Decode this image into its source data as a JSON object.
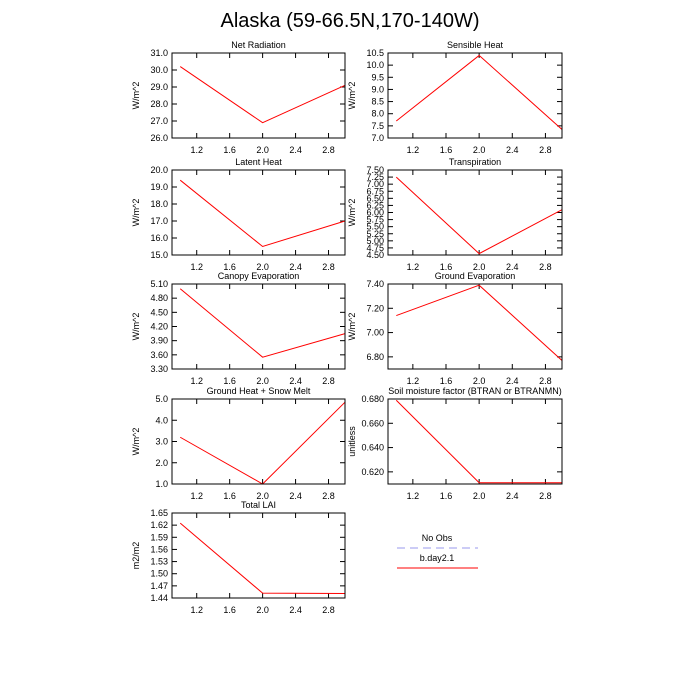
{
  "title": "Alaska (59-66.5N,170-140W)",
  "legend": [
    {
      "name": "No Obs",
      "color": "#9999ee",
      "dashed": true
    },
    {
      "name": "b.day2.1",
      "color": "#ff0000",
      "dashed": false
    }
  ],
  "chart_data": [
    {
      "type": "line",
      "title": "Net Radiation",
      "ylabel": "W/m^2",
      "x": [
        1,
        2,
        3
      ],
      "values": [
        30.2,
        26.9,
        29.1
      ],
      "color": "#ff0000",
      "xlim": [
        0.9,
        3.0
      ],
      "xticks": [
        1.2,
        1.6,
        {
          "value": 2,
          "label": "2.0"
        },
        2.4,
        2.8
      ],
      "ylim": [
        26,
        31
      ],
      "yticks": [
        {
          "value": 26,
          "label": "26.0"
        },
        {
          "value": 27,
          "label": "27.0"
        },
        {
          "value": 28,
          "label": "28.0"
        },
        {
          "value": 29,
          "label": "29.0"
        },
        {
          "value": 30,
          "label": "30.0"
        },
        {
          "value": 31,
          "label": "31.0"
        }
      ]
    },
    {
      "type": "line",
      "title": "Sensible Heat",
      "ylabel": "W/m^2",
      "x": [
        1,
        2,
        3
      ],
      "values": [
        7.7,
        10.4,
        7.35
      ],
      "color": "#ff0000",
      "xlim": [
        0.9,
        3.0
      ],
      "xticks": [
        1.2,
        1.6,
        {
          "value": 2,
          "label": "2.0"
        },
        2.4,
        2.8
      ],
      "ylim": [
        7,
        10.5
      ],
      "yticks": [
        {
          "value": 7,
          "label": "7.0"
        },
        7.5,
        {
          "value": 8,
          "label": "8.0"
        },
        8.5,
        {
          "value": 9,
          "label": "9.0"
        },
        9.5,
        {
          "value": 10,
          "label": "10.0"
        },
        10.5
      ]
    },
    {
      "type": "line",
      "title": "Latent Heat",
      "ylabel": "W/m^2",
      "x": [
        1,
        2,
        3
      ],
      "values": [
        19.4,
        15.5,
        17.0
      ],
      "color": "#ff0000",
      "xlim": [
        0.9,
        3.0
      ],
      "xticks": [
        1.2,
        1.6,
        {
          "value": 2,
          "label": "2.0"
        },
        2.4,
        2.8
      ],
      "ylim": [
        15,
        20
      ],
      "yticks": [
        {
          "value": 15,
          "label": "15.0"
        },
        {
          "value": 16,
          "label": "16.0"
        },
        {
          "value": 17,
          "label": "17.0"
        },
        {
          "value": 18,
          "label": "18.0"
        },
        {
          "value": 19,
          "label": "19.0"
        },
        {
          "value": 20,
          "label": "20.0"
        }
      ]
    },
    {
      "type": "line",
      "title": "Transpiration",
      "ylabel": "W/m^2",
      "x": [
        1,
        2,
        3
      ],
      "values": [
        7.25,
        4.55,
        6.1
      ],
      "color": "#ff0000",
      "xlim": [
        0.9,
        3.0
      ],
      "xticks": [
        1.2,
        1.6,
        {
          "value": 2,
          "label": "2.0"
        },
        2.4,
        2.8
      ],
      "ylim": [
        4.5,
        7.5
      ],
      "yticks": [
        {
          "value": 4.5,
          "label": "4.50"
        },
        4.75,
        {
          "value": 5,
          "label": "5.00"
        },
        5.25,
        {
          "value": 5.5,
          "label": "5.50"
        },
        5.75,
        {
          "value": 6,
          "label": "6.00"
        },
        6.25,
        {
          "value": 6.5,
          "label": "6.50"
        },
        6.75,
        {
          "value": 7,
          "label": "7.00"
        },
        7.25,
        {
          "value": 7.5,
          "label": "7.50"
        }
      ]
    },
    {
      "type": "line",
      "title": "Canopy Evaporation",
      "ylabel": "W/m^2",
      "x": [
        1,
        2,
        3
      ],
      "values": [
        5.0,
        3.55,
        4.05
      ],
      "color": "#ff0000",
      "xlim": [
        0.9,
        3.0
      ],
      "xticks": [
        1.2,
        1.6,
        {
          "value": 2,
          "label": "2.0"
        },
        2.4,
        2.8
      ],
      "ylim": [
        3.3,
        5.1
      ],
      "yticks": [
        {
          "value": 3.3,
          "label": "3.30"
        },
        {
          "value": 3.6,
          "label": "3.60"
        },
        {
          "value": 3.9,
          "label": "3.90"
        },
        {
          "value": 4.2,
          "label": "4.20"
        },
        {
          "value": 4.5,
          "label": "4.50"
        },
        {
          "value": 4.8,
          "label": "4.80"
        },
        {
          "value": 5.1,
          "label": "5.10"
        }
      ]
    },
    {
      "type": "line",
      "title": "Ground Evaporation",
      "ylabel": "W/m^2",
      "x": [
        1,
        2,
        3
      ],
      "values": [
        7.14,
        7.39,
        6.77
      ],
      "color": "#ff0000",
      "xlim": [
        0.9,
        3.0
      ],
      "xticks": [
        1.2,
        1.6,
        {
          "value": 2,
          "label": "2.0"
        },
        2.4,
        2.8
      ],
      "ylim": [
        6.7,
        7.4
      ],
      "yticks": [
        {
          "value": 6.8,
          "label": "6.80"
        },
        {
          "value": 7,
          "label": "7.00"
        },
        {
          "value": 7.2,
          "label": "7.20"
        },
        {
          "value": 7.4,
          "label": "7.40"
        }
      ]
    },
    {
      "type": "line",
      "title": "Ground Heat + Snow Melt",
      "ylabel": "W/m^2",
      "x": [
        1,
        2,
        3
      ],
      "values": [
        3.2,
        1.0,
        4.85
      ],
      "color": "#ff0000",
      "xlim": [
        0.9,
        3.0
      ],
      "xticks": [
        1.2,
        1.6,
        {
          "value": 2,
          "label": "2.0"
        },
        2.4,
        2.8
      ],
      "ylim": [
        1,
        5
      ],
      "yticks": [
        {
          "value": 1,
          "label": "1.0"
        },
        {
          "value": 2,
          "label": "2.0"
        },
        {
          "value": 3,
          "label": "3.0"
        },
        {
          "value": 4,
          "label": "4.0"
        },
        {
          "value": 5,
          "label": "5.0"
        }
      ]
    },
    {
      "type": "line",
      "title": "Soil moisture factor (BTRAN or BTRANMN)",
      "ylabel": "unitless",
      "x": [
        1,
        2,
        3
      ],
      "values": [
        0.679,
        0.611,
        0.611
      ],
      "color": "#ff0000",
      "xlim": [
        0.9,
        3.0
      ],
      "xticks": [
        1.2,
        1.6,
        {
          "value": 2,
          "label": "2.0"
        },
        2.4,
        2.8
      ],
      "ylim": [
        0.61,
        0.68
      ],
      "yticks": [
        {
          "value": 0.62,
          "label": "0.620"
        },
        {
          "value": 0.64,
          "label": "0.640"
        },
        {
          "value": 0.66,
          "label": "0.660"
        },
        {
          "value": 0.68,
          "label": "0.680"
        }
      ]
    },
    {
      "type": "line",
      "title": "Total LAI",
      "ylabel": "m2/m2",
      "x": [
        1,
        2,
        3
      ],
      "values": [
        1.625,
        1.452,
        1.451
      ],
      "color": "#ff0000",
      "xlim": [
        0.9,
        3.0
      ],
      "xticks": [
        1.2,
        1.6,
        {
          "value": 2,
          "label": "2.0"
        },
        2.4,
        2.8
      ],
      "ylim": [
        1.44,
        1.65
      ],
      "yticks": [
        1.44,
        1.47,
        {
          "value": 1.5,
          "label": "1.50"
        },
        1.53,
        1.56,
        1.59,
        1.62,
        1.65
      ]
    }
  ]
}
